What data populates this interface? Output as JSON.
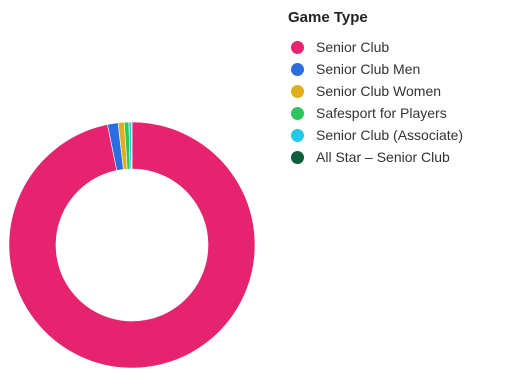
{
  "chart_data": {
    "type": "pie",
    "subtype": "donut",
    "legend_title": "Game Type",
    "legend_position": "right",
    "categories": [
      "Senior Club",
      "Senior Club Men",
      "Senior Club Women",
      "Safesport for Players",
      "Senior Club (Associate)",
      "All Star – Senior Club"
    ],
    "values": [
      96.8,
      1.4,
      0.8,
      0.6,
      0.3,
      0.1
    ],
    "colors": [
      "#E5236F",
      "#2A6EE0",
      "#E0AE1A",
      "#2DC65A",
      "#22C8E8",
      "#0E5E3C"
    ]
  }
}
